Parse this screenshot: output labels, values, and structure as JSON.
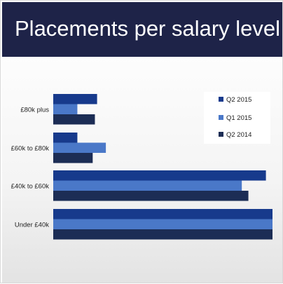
{
  "header": {
    "title": "Placements per salary level"
  },
  "colors": {
    "header_bg": "#1e2348",
    "series": [
      "#173a8c",
      "#4a78c8",
      "#1c2d55"
    ]
  },
  "chart_data": {
    "type": "bar",
    "orientation": "horizontal",
    "title": "Placements per salary level",
    "xlabel": "",
    "ylabel": "",
    "grid": false,
    "legend_position": "top-right",
    "xlim": [
      0,
      100
    ],
    "categories": [
      "£80k plus",
      "£60k to £80k",
      "£40k to £60k",
      "Under £40k"
    ],
    "series": [
      {
        "name": "Q2 2015",
        "color": "#173a8c",
        "values": [
          20,
          11,
          97,
          100
        ]
      },
      {
        "name": "Q1 2015",
        "color": "#4a78c8",
        "values": [
          11,
          24,
          86,
          100
        ]
      },
      {
        "name": "Q2 2014",
        "color": "#1c2d55",
        "values": [
          19,
          18,
          89,
          100
        ]
      }
    ]
  }
}
